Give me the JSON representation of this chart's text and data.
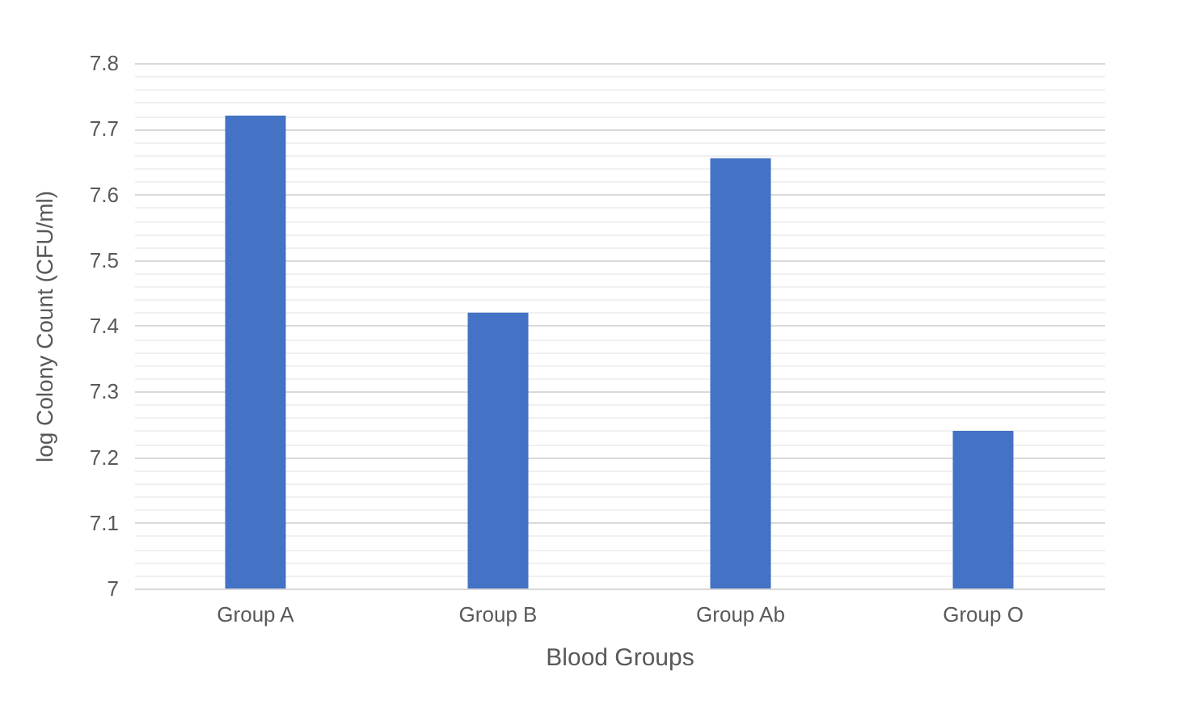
{
  "chart_data": {
    "type": "bar",
    "xlabel": "Blood Groups",
    "ylabel": "log Colony Count (CFU/ml)",
    "categories": [
      "Group A",
      "Group B",
      "Group Ab",
      "Group O"
    ],
    "values": [
      7.72,
      7.42,
      7.655,
      7.24
    ],
    "color": "#4472c4",
    "ylim": [
      7,
      7.8
    ],
    "yticks": [
      "7",
      {
        "value": 7.02,
        "label": null
      },
      {
        "value": 7.04,
        "label": null
      },
      {
        "value": 7.06,
        "label": null
      },
      {
        "value": 7.08,
        "label": null
      },
      {
        "value": 7.1,
        "label": "7.1"
      },
      {
        "value": 7.12,
        "label": null
      },
      {
        "value": 7.14,
        "label": null
      },
      {
        "value": 7.16,
        "label": null
      },
      {
        "value": 7.18,
        "label": null
      },
      {
        "value": 7.2,
        "label": "7.2"
      },
      {
        "value": 7.22,
        "label": null
      },
      {
        "value": 7.24,
        "label": null
      },
      {
        "value": 7.26,
        "label": null
      },
      {
        "value": 7.28,
        "label": null
      },
      {
        "value": 7.3,
        "label": "7.3"
      },
      {
        "value": 7.32,
        "label": null
      },
      {
        "value": 7.34,
        "label": null
      },
      {
        "value": 7.36,
        "label": null
      },
      {
        "value": 7.38,
        "label": null
      },
      {
        "value": 7.4,
        "label": "7.4"
      },
      {
        "value": 7.42,
        "label": null
      },
      {
        "value": 7.44,
        "label": null
      },
      {
        "value": 7.46,
        "label": null
      },
      {
        "value": 7.48,
        "label": null
      },
      {
        "value": 7.5,
        "label": "7.5"
      },
      {
        "value": 7.52,
        "label": null
      },
      {
        "value": 7.54,
        "label": null
      },
      {
        "value": 7.56,
        "label": null
      },
      {
        "value": 7.58,
        "label": null
      },
      {
        "value": 7.6,
        "label": "7.6"
      },
      {
        "value": 7.62,
        "label": null
      },
      {
        "value": 7.64,
        "label": null
      },
      {
        "value": 7.66,
        "label": null
      },
      {
        "value": 7.68,
        "label": null
      },
      {
        "value": 7.7,
        "label": "7.7"
      },
      {
        "value": 7.72,
        "label": null
      },
      {
        "value": 7.74,
        "label": null
      },
      {
        "value": 7.76,
        "label": null
      },
      {
        "value": 7.78,
        "label": null
      },
      {
        "value": 7.8,
        "label": "7.8"
      }
    ],
    "grid": "y"
  }
}
